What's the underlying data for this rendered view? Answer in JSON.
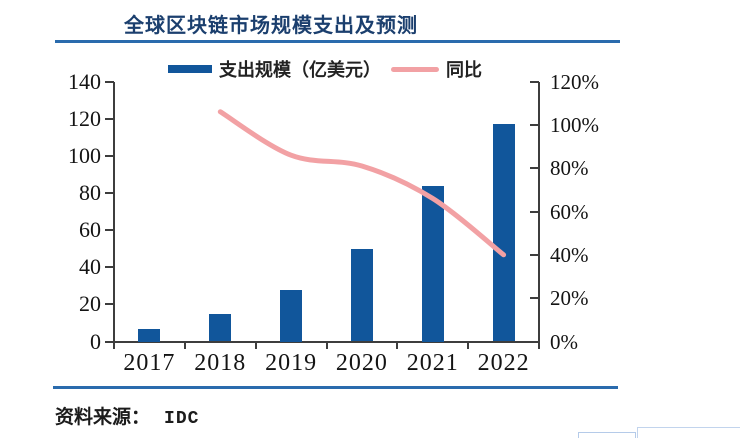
{
  "title": "全球区块链市场规模支出及预测",
  "source": {
    "prefix": "资料来源：",
    "name": "IDC"
  },
  "legend": [
    {
      "label": "支出规模（亿美元）",
      "type": "bar"
    },
    {
      "label": "同比",
      "type": "line"
    }
  ],
  "colors": {
    "bar": "#11569B",
    "line": "#F2A1A4",
    "title_text": "#1B3F6E",
    "rule": "#2A6BAD",
    "axis": "#3D3D3D",
    "tick_text": "#141414"
  },
  "chart_data": {
    "type": "bar",
    "subtype": "bar+line combo, dual axis",
    "title": "全球区块链市场规模支出及预测",
    "categories": [
      "2017",
      "2018",
      "2019",
      "2020",
      "2021",
      "2022"
    ],
    "series": [
      {
        "name": "支出规模（亿美元）",
        "type": "bar",
        "axis": "left",
        "values": [
          7,
          15,
          28,
          50,
          84,
          117
        ]
      },
      {
        "name": "同比",
        "type": "line",
        "axis": "right",
        "unit": "%",
        "values": [
          null,
          106,
          86,
          81,
          66,
          40
        ]
      }
    ],
    "left_axis": {
      "min": 0,
      "max": 140,
      "step": 20,
      "ticks": [
        "0",
        "20",
        "40",
        "60",
        "80",
        "100",
        "120",
        "140"
      ]
    },
    "right_axis": {
      "min": 0,
      "max": 120,
      "step": 20,
      "ticks": [
        "0%",
        "20%",
        "40%",
        "60%",
        "80%",
        "100%",
        "120%"
      ]
    },
    "grid": false,
    "legend_position": "top"
  }
}
